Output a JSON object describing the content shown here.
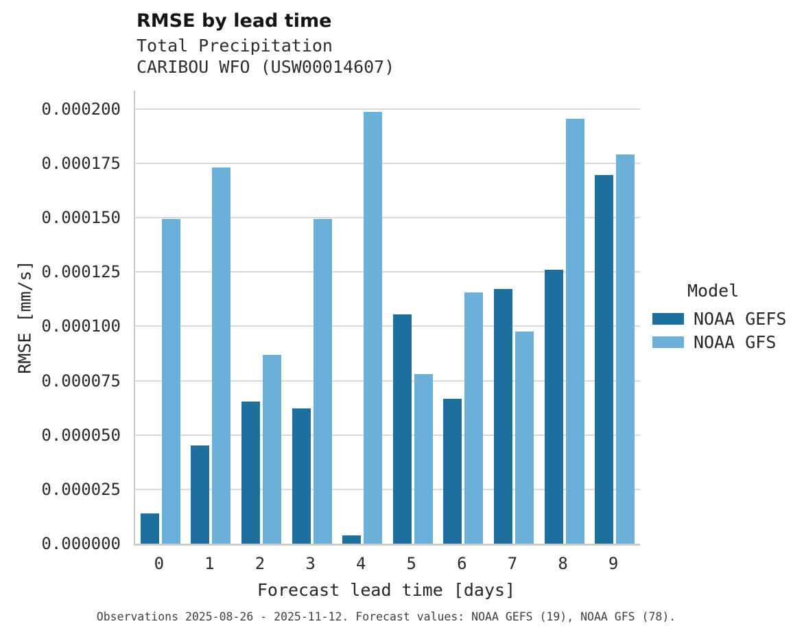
{
  "caption": "Observations 2025-08-26 - 2025-11-12. Forecast values: NOAA GEFS (19), NOAA GFS (78).",
  "legend": {
    "title": "Model"
  },
  "chart_data": {
    "type": "bar",
    "title": "RMSE by lead time",
    "subtitle_line1": "Total Precipitation",
    "subtitle_line2": "CARIBOU WFO (USW00014607)",
    "xlabel": "Forecast lead time [days]",
    "ylabel": "RMSE [mm/s]",
    "categories": [
      "0",
      "1",
      "2",
      "3",
      "4",
      "5",
      "6",
      "7",
      "8",
      "9"
    ],
    "series": [
      {
        "name": "NOAA GEFS",
        "color": "#1d6f9e",
        "values": [
          1.38e-05,
          4.53e-05,
          6.54e-05,
          6.22e-05,
          3.8e-06,
          0.0001055,
          6.66e-05,
          0.0001173,
          0.000126,
          0.0001697
        ]
      },
      {
        "name": "NOAA GFS",
        "color": "#6bb0d8",
        "values": [
          0.0001494,
          0.000173,
          8.69e-05,
          0.0001495,
          0.0001988,
          7.81e-05,
          0.0001157,
          9.76e-05,
          0.0001956,
          0.0001791
        ]
      }
    ],
    "ylim": [
      0,
      0.0002085
    ],
    "yticks": [
      0,
      2.5e-05,
      5e-05,
      7.5e-05,
      0.0001,
      0.000125,
      0.00015,
      0.000175,
      0.0002
    ],
    "ytick_labels": [
      "0.000000",
      "0.000025",
      "0.000050",
      "0.000075",
      "0.000100",
      "0.000125",
      "0.000150",
      "0.000175",
      "0.000200"
    ],
    "grid": true,
    "legend_position": "right",
    "legend_title": "Model"
  }
}
